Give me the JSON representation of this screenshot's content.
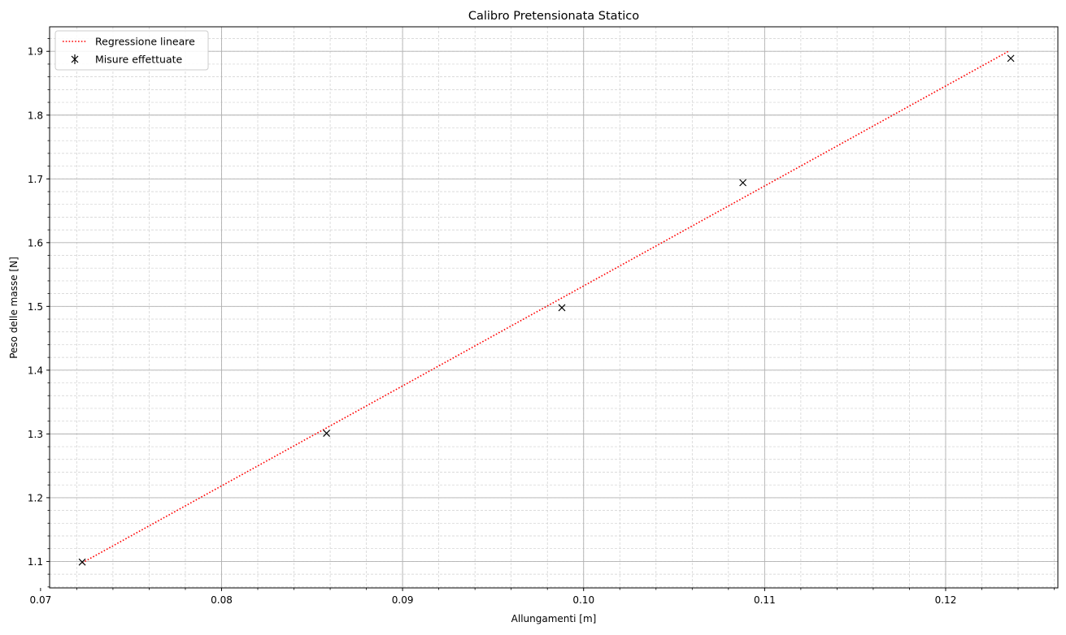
{
  "chart_data": {
    "type": "scatter",
    "title": "Calibro Pretensionata Statico",
    "xlabel": "Allungamenti [m]",
    "ylabel": "Peso delle masse [N]",
    "xlim": [
      0.0705,
      0.1262
    ],
    "ylim": [
      1.0585,
      1.9385
    ],
    "x_ticks": [
      0.07,
      0.08,
      0.09,
      0.1,
      0.11,
      0.12
    ],
    "x_tick_labels": [
      "0.07",
      "0.08",
      "0.09",
      "0.10",
      "0.11",
      "0.12"
    ],
    "y_ticks": [
      1.1,
      1.2,
      1.3,
      1.4,
      1.5,
      1.6,
      1.7,
      1.8,
      1.9
    ],
    "y_tick_labels": [
      "1.1",
      "1.2",
      "1.3",
      "1.4",
      "1.5",
      "1.6",
      "1.7",
      "1.8",
      "1.9"
    ],
    "x_minor_step": 0.002,
    "y_minor_step": 0.02,
    "grid": "major solid, minor dashed",
    "legend_position": "upper-left",
    "series": [
      {
        "name": "Regressione lineare",
        "kind": "line",
        "style": "dotted",
        "color": "#ff0000",
        "x": [
          0.0723,
          0.1235
        ],
        "y": [
          1.0978,
          1.9005
        ]
      },
      {
        "name": "Misure effettuate",
        "kind": "markers",
        "marker": "x",
        "color": "#000000",
        "x": [
          0.0723,
          0.0858,
          0.0988,
          0.1088,
          0.1236
        ],
        "y": [
          1.099,
          1.301,
          1.498,
          1.694,
          1.889
        ]
      }
    ]
  }
}
